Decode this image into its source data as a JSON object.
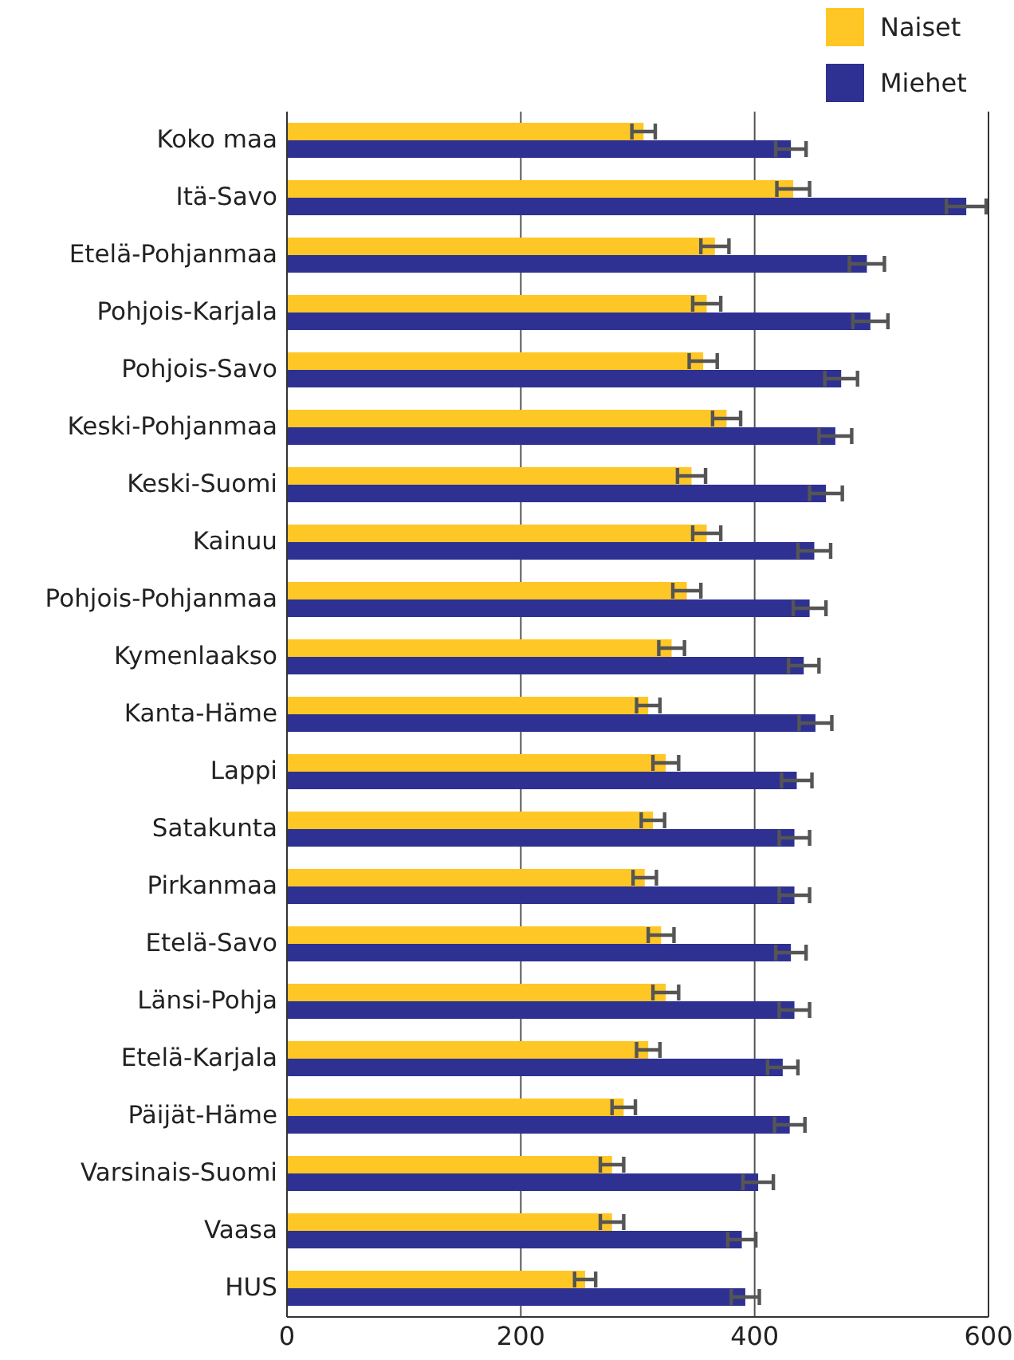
{
  "chart_data": {
    "type": "bar",
    "orientation": "horizontal",
    "categories": [
      "Koko maa",
      "Itä-Savo",
      "Etelä-Pohjanmaa",
      "Pohjois-Karjala",
      "Pohjois-Savo",
      "Keski-Pohjanmaa",
      "Keski-Suomi",
      "Kainuu",
      "Pohjois-Pohjanmaa",
      "Kymenlaakso",
      "Kanta-Häme",
      "Lappi",
      "Satakunta",
      "Pirkanmaa",
      "Etelä-Savo",
      "Länsi-Pohja",
      "Etelä-Karjala",
      "Päijät-Häme",
      "Varsinais-Suomi",
      "Vaasa",
      "HUS"
    ],
    "series": [
      {
        "name": "Naiset",
        "color": "#ffc726",
        "values": [
          305,
          433,
          366,
          359,
          356,
          376,
          346,
          359,
          342,
          329,
          309,
          324,
          313,
          306,
          320,
          324,
          309,
          288,
          278,
          278,
          255
        ],
        "errors": [
          10,
          14,
          12,
          12,
          12,
          12,
          12,
          12,
          12,
          11,
          10,
          11,
          10,
          10,
          11,
          11,
          10,
          10,
          10,
          10,
          9
        ]
      },
      {
        "name": "Miehet",
        "color": "#2e3192",
        "values": [
          431,
          581,
          496,
          499,
          474,
          469,
          461,
          451,
          447,
          442,
          452,
          436,
          434,
          434,
          431,
          434,
          424,
          430,
          403,
          389,
          392
        ],
        "errors": [
          13,
          17,
          15,
          15,
          14,
          14,
          14,
          14,
          14,
          13,
          14,
          13,
          13,
          13,
          13,
          13,
          13,
          13,
          13,
          12,
          12
        ]
      }
    ],
    "xlim": [
      0,
      600
    ],
    "xticks": [
      0,
      200,
      400,
      600
    ],
    "grid": "x",
    "legend": "top right"
  }
}
